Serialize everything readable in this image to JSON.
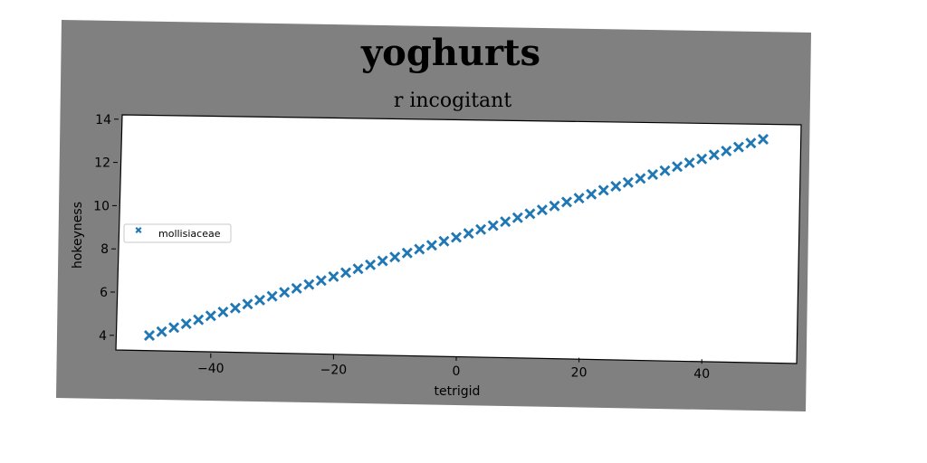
{
  "chart_data": {
    "type": "scatter",
    "title": "yoghurts",
    "subtitle": "r incogitant",
    "xlabel": "tetrigid",
    "ylabel": "hokeyness",
    "xlim": [
      -55,
      55
    ],
    "ylim": [
      3.5,
      14.2
    ],
    "xticks": [
      -40,
      -20,
      0,
      20,
      40
    ],
    "xtick_labels": [
      "−40",
      "−20",
      "0",
      "20",
      "40"
    ],
    "yticks": [
      4,
      6,
      8,
      10,
      12,
      14
    ],
    "ytick_labels": [
      "4",
      "6",
      "8",
      "10",
      "12",
      "14"
    ],
    "grid": false,
    "legend_position": "center-left",
    "marker": "x-filled",
    "colors": {
      "series": "#1f77b4",
      "outer_background": "#808080",
      "plot_background": "#ffffff"
    },
    "series": [
      {
        "name": "mollisiaceae",
        "x": [
          -50,
          -48,
          -46,
          -44,
          -42,
          -40,
          -38,
          -36,
          -34,
          -32,
          -30,
          -28,
          -26,
          -24,
          -22,
          -20,
          -18,
          -16,
          -14,
          -12,
          -10,
          -8,
          -6,
          -4,
          -2,
          0,
          2,
          4,
          6,
          8,
          10,
          12,
          14,
          16,
          18,
          20,
          22,
          24,
          26,
          28,
          30,
          32,
          34,
          36,
          38,
          40,
          42,
          44,
          46,
          48,
          50
        ],
        "y": [
          4.0,
          4.19,
          4.38,
          4.57,
          4.76,
          4.95,
          5.14,
          5.33,
          5.52,
          5.71,
          5.9,
          6.09,
          6.28,
          6.47,
          6.66,
          6.85,
          7.04,
          7.23,
          7.42,
          7.61,
          7.8,
          7.99,
          8.18,
          8.37,
          8.56,
          8.75,
          8.94,
          9.13,
          9.32,
          9.51,
          9.7,
          9.89,
          10.08,
          10.27,
          10.46,
          10.65,
          10.84,
          11.03,
          11.22,
          11.41,
          11.6,
          11.79,
          11.98,
          12.17,
          12.36,
          12.55,
          12.74,
          12.93,
          13.12,
          13.31,
          13.5
        ]
      }
    ]
  }
}
